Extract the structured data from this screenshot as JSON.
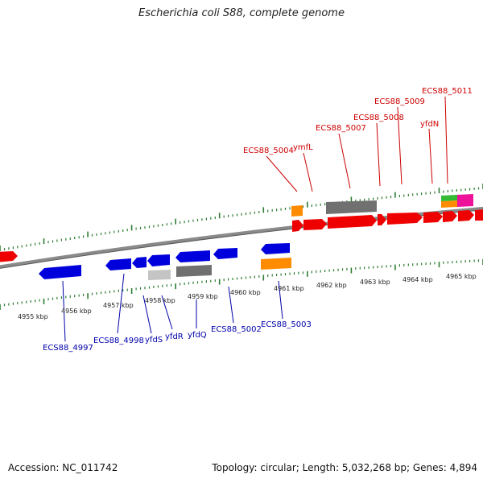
{
  "title": "Escherichia coli S88, complete genome",
  "accession": "Accession: NC_011742",
  "stats": "Topology: circular; Length: 5,032,268 bp; Genes: 4,894",
  "colors": {
    "forward_cds": "#ee0000",
    "reverse_cds": "#0000dd",
    "pseudo": "#707070",
    "pseudo_light": "#c4c4c4",
    "rna": "#ff8c00",
    "trna": "#33bb33",
    "misc": "#ee1199",
    "tick": "#2e7d32",
    "backbone": "#8a8a8a",
    "forward_label": "#cc0000",
    "reverse_label": "#0000aa"
  },
  "ticks_kbp": [
    "4955 kbp",
    "4956 kbp",
    "4957 kbp",
    "4958 kbp",
    "4959 kbp",
    "4960 kbp",
    "4961 kbp",
    "4962 kbp",
    "4963 kbp",
    "4964 kbp",
    "4965 kbp"
  ],
  "forward_labels": [
    "ECS88_5004",
    "ymfL",
    "ECS88_5007",
    "ECS88_5008",
    "ECS88_5009",
    "yfdN",
    "ECS88_5011"
  ],
  "reverse_labels": [
    "ECS88_4997",
    "ECS88_4998",
    "yfdS",
    "yfdR",
    "yfdQ",
    "ECS88_5002",
    "ECS88_5003"
  ]
}
